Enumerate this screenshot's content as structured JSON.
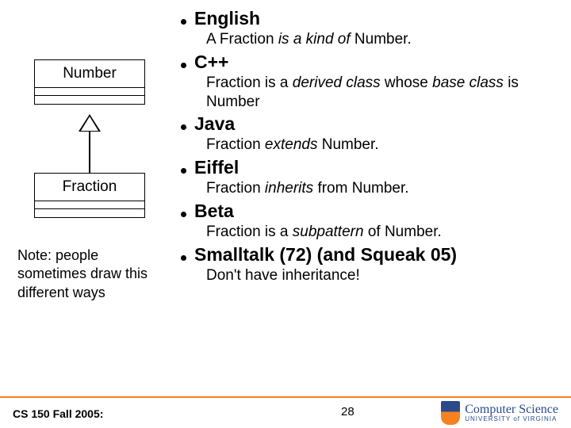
{
  "diagram": {
    "parent": "Number",
    "child": "Fraction"
  },
  "note": "Note: people sometimes draw this different ways",
  "languages": [
    {
      "name": "English",
      "parts": [
        {
          "t": "A Fraction ",
          "i": false
        },
        {
          "t": "is a kind of",
          "i": true
        },
        {
          "t": " Number.",
          "i": false
        }
      ]
    },
    {
      "name": "C++",
      "parts": [
        {
          "t": "Fraction is a ",
          "i": false
        },
        {
          "t": "derived class",
          "i": true
        },
        {
          "t": " whose ",
          "i": false
        },
        {
          "t": "base class",
          "i": true
        },
        {
          "t": " is Number",
          "i": false
        }
      ]
    },
    {
      "name": "Java",
      "parts": [
        {
          "t": "Fraction ",
          "i": false
        },
        {
          "t": "extends",
          "i": true
        },
        {
          "t": " Number.",
          "i": false
        }
      ]
    },
    {
      "name": "Eiffel",
      "parts": [
        {
          "t": "Fraction ",
          "i": false
        },
        {
          "t": "inherits",
          "i": true
        },
        {
          "t": " from Number.",
          "i": false
        }
      ]
    },
    {
      "name": "Beta",
      "parts": [
        {
          "t": "Fraction is a ",
          "i": false
        },
        {
          "t": "subpattern",
          "i": true
        },
        {
          "t": " of Number.",
          "i": false
        }
      ]
    },
    {
      "name": "Smalltalk (72) (and Squeak 05)",
      "parts": [
        {
          "t": "Don't have inheritance!",
          "i": false
        }
      ]
    }
  ],
  "footer": {
    "course": "CS 150 Fall 2005:",
    "page": "28",
    "logo_main": "Computer Science",
    "logo_sub": "UNIVERSITY of VIRGINIA"
  },
  "colors": {
    "accent": "#f58220",
    "logo_blue": "#2a4a8a",
    "text": "#000000",
    "background": "#ffffff"
  }
}
